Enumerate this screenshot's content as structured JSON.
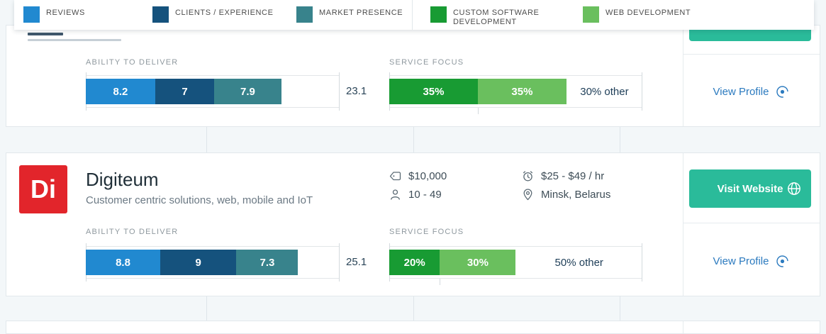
{
  "legend": {
    "items": [
      {
        "label": "REVIEWS",
        "color": "#2189d0"
      },
      {
        "label": "CLIENTS / EXPERIENCE",
        "color": "#15527d"
      },
      {
        "label": "MARKET PRESENCE",
        "color": "#38838c"
      },
      {
        "label": "CUSTOM SOFTWARE DEVELOPMENT",
        "color": "#189b33"
      },
      {
        "label": "WEB DEVELOPMENT",
        "color": "#6abf5e"
      }
    ]
  },
  "cards": [
    {
      "ability": {
        "label": "ABILITY TO DELIVER",
        "total": "23.1",
        "segments": [
          {
            "value": "8.2",
            "pct": 27.33,
            "color": "#2189d0"
          },
          {
            "value": "7",
            "pct": 23.33,
            "color": "#15527d"
          },
          {
            "value": "7.9",
            "pct": 26.33,
            "color": "#38838c"
          }
        ]
      },
      "service": {
        "label": "SERVICE FOCUS",
        "other": "30% other",
        "segments": [
          {
            "value": "35%",
            "pct": 35,
            "color": "#189b33"
          },
          {
            "value": "35%",
            "pct": 35,
            "color": "#6abf5e"
          }
        ]
      },
      "actions": {
        "view_profile": "View Profile"
      }
    },
    {
      "name": "Digiteum",
      "tagline": "Customer centric solutions, web, mobile and IoT",
      "logo_text": "Di",
      "meta": {
        "min_project": "$10,000",
        "employees": "10 - 49",
        "hourly_rate": "$25 - $49 / hr",
        "location": "Minsk, Belarus"
      },
      "ability": {
        "label": "ABILITY TO DELIVER",
        "total": "25.1",
        "segments": [
          {
            "value": "8.8",
            "pct": 29.33,
            "color": "#2189d0"
          },
          {
            "value": "9",
            "pct": 30.0,
            "color": "#15527d"
          },
          {
            "value": "7.3",
            "pct": 24.33,
            "color": "#38838c"
          }
        ]
      },
      "service": {
        "label": "SERVICE FOCUS",
        "other": "50% other",
        "segments": [
          {
            "value": "20%",
            "pct": 20,
            "color": "#189b33"
          },
          {
            "value": "30%",
            "pct": 30,
            "color": "#6abf5e"
          }
        ]
      },
      "actions": {
        "visit_website": "Visit Website",
        "view_profile": "View Profile"
      }
    }
  ]
}
